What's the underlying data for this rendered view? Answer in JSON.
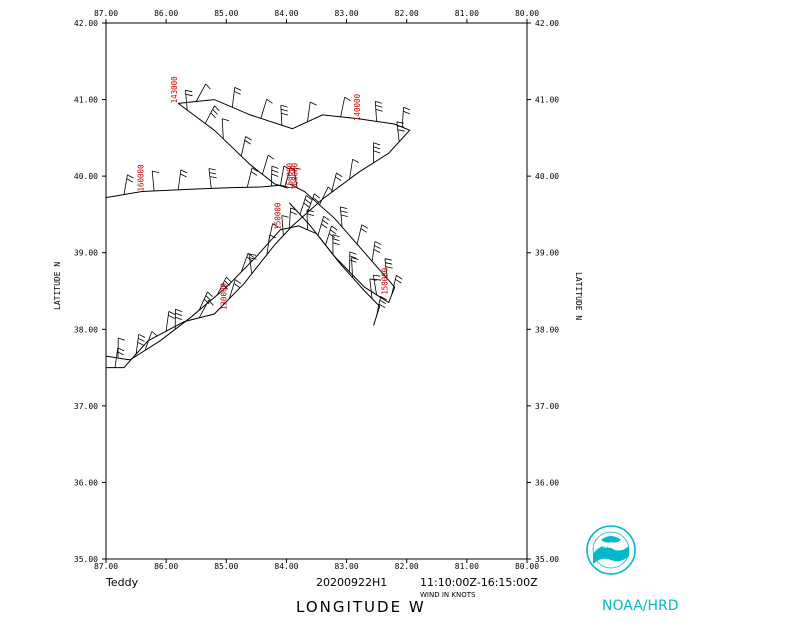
{
  "map": {
    "x_ticks": [
      "87.00",
      "86.00",
      "85.00",
      "84.00",
      "83.00",
      "82.00",
      "81.00",
      "80.00"
    ],
    "x_tick_values": [
      87,
      86,
      85,
      84,
      83,
      82,
      81,
      80
    ],
    "y_ticks": [
      "35.00",
      "36.00",
      "37.00",
      "38.00",
      "39.00",
      "40.00",
      "41.00",
      "42.00"
    ],
    "y_tick_values": [
      35,
      36,
      37,
      38,
      39,
      40,
      41,
      42
    ],
    "lon_range": [
      87,
      80
    ],
    "lat_range": [
      35,
      42
    ],
    "ylabel": "LATITUDE   N",
    "xlabel": "LONGITUDE   W",
    "track_color": "#000000",
    "time_label_color": "#cc0000",
    "track_segments": [
      [
        [
          87.0,
          39.72
        ],
        [
          86.4,
          39.8
        ],
        [
          85.6,
          39.83
        ],
        [
          84.9,
          39.85
        ],
        [
          84.4,
          39.86
        ],
        [
          84.1,
          39.88
        ],
        [
          83.95,
          39.85
        ]
      ],
      [
        [
          84.0,
          39.85
        ],
        [
          84.2,
          39.9
        ],
        [
          84.6,
          40.15
        ],
        [
          85.2,
          40.6
        ],
        [
          85.8,
          40.95
        ]
      ],
      [
        [
          85.8,
          40.95
        ],
        [
          85.2,
          41.0
        ],
        [
          84.6,
          40.8
        ],
        [
          83.9,
          40.62
        ],
        [
          83.4,
          40.8
        ],
        [
          82.8,
          40.75
        ],
        [
          82.2,
          40.68
        ],
        [
          81.95,
          40.6
        ],
        [
          82.3,
          40.3
        ],
        [
          82.8,
          40.05
        ],
        [
          83.4,
          39.7
        ],
        [
          83.9,
          39.35
        ],
        [
          84.2,
          39.1
        ],
        [
          84.7,
          38.6
        ],
        [
          85.2,
          38.2
        ],
        [
          85.7,
          38.1
        ],
        [
          86.3,
          37.85
        ],
        [
          86.7,
          37.5
        ],
        [
          87.0,
          37.5
        ]
      ],
      [
        [
          87.0,
          37.65
        ],
        [
          86.6,
          37.6
        ],
        [
          86.1,
          37.85
        ],
        [
          85.6,
          38.15
        ],
        [
          85.0,
          38.55
        ],
        [
          84.5,
          38.95
        ],
        [
          84.1,
          39.3
        ],
        [
          83.8,
          39.35
        ],
        [
          83.5,
          39.25
        ],
        [
          83.2,
          38.95
        ],
        [
          82.7,
          38.55
        ],
        [
          82.3,
          38.35
        ],
        [
          82.2,
          38.55
        ],
        [
          82.7,
          39.0
        ],
        [
          83.2,
          39.45
        ],
        [
          83.7,
          39.8
        ],
        [
          83.95,
          39.9
        ]
      ],
      [
        [
          83.95,
          39.65
        ],
        [
          83.6,
          39.35
        ],
        [
          83.1,
          38.85
        ],
        [
          82.7,
          38.5
        ],
        [
          82.45,
          38.3
        ],
        [
          82.55,
          38.05
        ]
      ]
    ],
    "time_labels": [
      {
        "text": "143000",
        "lon": 85.82,
        "lat": 40.95
      },
      {
        "text": "140000",
        "lon": 82.78,
        "lat": 40.72
      },
      {
        "text": "160000",
        "lon": 86.38,
        "lat": 39.8
      },
      {
        "text": "150000",
        "lon": 83.9,
        "lat": 39.82
      },
      {
        "text": "160000",
        "lon": 83.82,
        "lat": 39.82
      },
      {
        "text": "150000",
        "lon": 84.1,
        "lat": 39.3
      },
      {
        "text": "130000",
        "lon": 85.0,
        "lat": 38.25
      },
      {
        "text": "150000",
        "lon": 82.32,
        "lat": 38.45
      }
    ]
  },
  "footer": {
    "storm": "Teddy",
    "flight": "20200922H1",
    "time_range": "11:10:00Z-16:15:00Z",
    "wind_units": "WIND IN KNOTS",
    "organization": "NOAA/HRD",
    "logo_text": "NOAA"
  }
}
